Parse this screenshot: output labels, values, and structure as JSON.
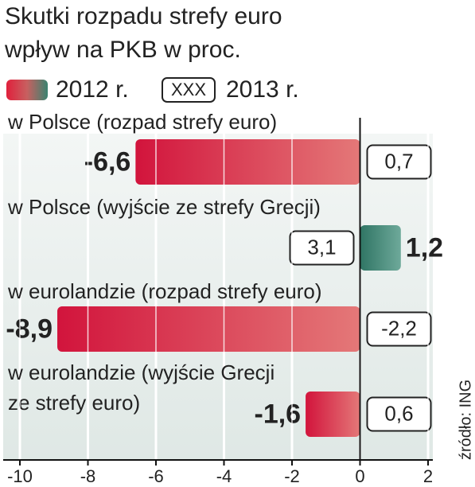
{
  "chart_data": {
    "type": "bar",
    "orientation": "horizontal",
    "title": "Skutki rozpadu strefy euro",
    "subtitle": "wpływ na PKB w proc.",
    "categories": [
      "w Polsce (rozpad strefy euro)",
      "w Polsce (wyjście ze strefy Grecji)",
      "w eurolandzie (rozpad strefy euro)",
      "w eurolandzie (wyjście Grecji\nze strefy euro)"
    ],
    "series": [
      {
        "name": "2012 r.",
        "color": "#d2143c",
        "positive_color": "#3a8370",
        "values": [
          -6.6,
          1.2,
          -8.9,
          -1.6
        ],
        "value_labels": [
          "-6,6",
          "1,2",
          "-8,9",
          "-1,6"
        ]
      },
      {
        "name": "2013 r.",
        "color": "#222222",
        "values": [
          0.7,
          3.1,
          -2.2,
          0.6
        ],
        "value_labels": [
          "0,7",
          "3,1",
          "-2,2",
          "0,6"
        ]
      }
    ],
    "legend_box_label": "XXX",
    "xlim": [
      -10,
      2
    ],
    "xticks": [
      -10,
      -8,
      -6,
      -4,
      -2,
      0,
      2
    ],
    "grid": true,
    "source": "źródło: ING"
  }
}
